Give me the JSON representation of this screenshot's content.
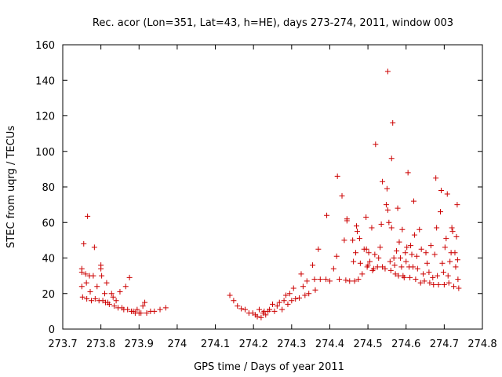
{
  "chart_data": {
    "type": "scatter",
    "title": "Rec. acor (Lon=351, Lat=43, h=HE), days 273-274, 2011, window 003",
    "xlabel": "GPS time / Days of year 2011",
    "ylabel": "STEC from uqrg / TECUs",
    "xlim": [
      273.7,
      274.8
    ],
    "ylim": [
      0,
      160
    ],
    "xticks": [
      273.7,
      273.8,
      273.9,
      274.0,
      274.1,
      274.2,
      274.3,
      274.4,
      274.5,
      274.6,
      274.7,
      274.8
    ],
    "xtick_labels": [
      "273.7",
      "273.8",
      "273.9",
      "274",
      "274.1",
      "274.2",
      "274.3",
      "274.4",
      "274.5",
      "274.6",
      "274.7",
      "274.8"
    ],
    "yticks": [
      0,
      20,
      40,
      60,
      80,
      100,
      120,
      140,
      160
    ],
    "ytick_labels": [
      "0",
      "20",
      "40",
      "60",
      "80",
      "100",
      "120",
      "140",
      "160"
    ],
    "grid": false,
    "legend": "none",
    "marker": "plus",
    "color": "#cc0000",
    "series": [
      {
        "points": [
          [
            273.75,
            34
          ],
          [
            273.75,
            32
          ],
          [
            273.75,
            24
          ],
          [
            273.752,
            18
          ],
          [
            273.755,
            48
          ],
          [
            273.76,
            31
          ],
          [
            273.762,
            26
          ],
          [
            273.763,
            17
          ],
          [
            273.765,
            63.5
          ],
          [
            273.77,
            30
          ],
          [
            273.772,
            21
          ],
          [
            273.775,
            16
          ],
          [
            273.78,
            30
          ],
          [
            273.783,
            46
          ],
          [
            273.785,
            17
          ],
          [
            273.79,
            24
          ],
          [
            273.795,
            16
          ],
          [
            273.8,
            36
          ],
          [
            273.8,
            34
          ],
          [
            273.802,
            30
          ],
          [
            273.805,
            16
          ],
          [
            273.81,
            20
          ],
          [
            273.812,
            15
          ],
          [
            273.815,
            26
          ],
          [
            273.818,
            15
          ],
          [
            273.822,
            14
          ],
          [
            273.828,
            20
          ],
          [
            273.832,
            18
          ],
          [
            273.835,
            13
          ],
          [
            273.84,
            16
          ],
          [
            273.845,
            12
          ],
          [
            273.85,
            21
          ],
          [
            273.855,
            12
          ],
          [
            273.86,
            11
          ],
          [
            273.865,
            24
          ],
          [
            273.87,
            11
          ],
          [
            273.875,
            29
          ],
          [
            273.88,
            10
          ],
          [
            273.885,
            10
          ],
          [
            273.89,
            9
          ],
          [
            273.895,
            11
          ],
          [
            273.9,
            9
          ],
          [
            273.905,
            9
          ],
          [
            273.91,
            13
          ],
          [
            273.915,
            15
          ],
          [
            273.92,
            9
          ],
          [
            273.93,
            10
          ],
          [
            273.94,
            10
          ],
          [
            273.955,
            11
          ],
          [
            273.97,
            12
          ],
          [
            274.138,
            19
          ],
          [
            274.148,
            16
          ],
          [
            274.158,
            13
          ],
          [
            274.168,
            11.5
          ],
          [
            274.178,
            11
          ],
          [
            274.188,
            9
          ],
          [
            274.198,
            9
          ],
          [
            274.205,
            8
          ],
          [
            274.21,
            7
          ],
          [
            274.215,
            11
          ],
          [
            274.22,
            6.5
          ],
          [
            274.225,
            9
          ],
          [
            274.228,
            10
          ],
          [
            274.232,
            8
          ],
          [
            274.238,
            10
          ],
          [
            274.242,
            11
          ],
          [
            274.25,
            14
          ],
          [
            274.255,
            10
          ],
          [
            274.262,
            13
          ],
          [
            274.268,
            15
          ],
          [
            274.275,
            11
          ],
          [
            274.28,
            16
          ],
          [
            274.285,
            19
          ],
          [
            274.29,
            14
          ],
          [
            274.295,
            20
          ],
          [
            274.3,
            16
          ],
          [
            274.305,
            23
          ],
          [
            274.31,
            17
          ],
          [
            274.32,
            17.5
          ],
          [
            274.325,
            31
          ],
          [
            274.33,
            24
          ],
          [
            274.335,
            19
          ],
          [
            274.34,
            27
          ],
          [
            274.345,
            20
          ],
          [
            274.355,
            36
          ],
          [
            274.36,
            28
          ],
          [
            274.362,
            22
          ],
          [
            274.37,
            45
          ],
          [
            274.375,
            28
          ],
          [
            274.39,
            28
          ],
          [
            274.392,
            64
          ],
          [
            274.4,
            27
          ],
          [
            274.41,
            34
          ],
          [
            274.418,
            41
          ],
          [
            274.42,
            86
          ],
          [
            274.425,
            28
          ],
          [
            274.432,
            75
          ],
          [
            274.438,
            50
          ],
          [
            274.442,
            27.5
          ],
          [
            274.445,
            61
          ],
          [
            274.445,
            62
          ],
          [
            274.452,
            27
          ],
          [
            274.46,
            50
          ],
          [
            274.462,
            38
          ],
          [
            274.465,
            27
          ],
          [
            274.468,
            43
          ],
          [
            274.47,
            58
          ],
          [
            274.472,
            55
          ],
          [
            274.475,
            28
          ],
          [
            274.478,
            51
          ],
          [
            274.48,
            37
          ],
          [
            274.485,
            31
          ],
          [
            274.49,
            45
          ],
          [
            274.495,
            63
          ],
          [
            274.496,
            45
          ],
          [
            274.498,
            35
          ],
          [
            274.5,
            36
          ],
          [
            274.502,
            43
          ],
          [
            274.505,
            38
          ],
          [
            274.51,
            57
          ],
          [
            274.512,
            33
          ],
          [
            274.515,
            34
          ],
          [
            274.518,
            42
          ],
          [
            274.52,
            104
          ],
          [
            274.525,
            35
          ],
          [
            274.528,
            40
          ],
          [
            274.532,
            46
          ],
          [
            274.535,
            59
          ],
          [
            274.538,
            83
          ],
          [
            274.538,
            35
          ],
          [
            274.545,
            34
          ],
          [
            274.548,
            70
          ],
          [
            274.55,
            79
          ],
          [
            274.552,
            145
          ],
          [
            274.552,
            67
          ],
          [
            274.555,
            60
          ],
          [
            274.558,
            38
          ],
          [
            274.56,
            33
          ],
          [
            274.562,
            96
          ],
          [
            274.562,
            57
          ],
          [
            274.565,
            116
          ],
          [
            274.568,
            40
          ],
          [
            274.57,
            36
          ],
          [
            274.572,
            31
          ],
          [
            274.575,
            44
          ],
          [
            274.578,
            68
          ],
          [
            274.58,
            30
          ],
          [
            274.582,
            49
          ],
          [
            274.585,
            40
          ],
          [
            274.588,
            35
          ],
          [
            274.59,
            56
          ],
          [
            274.592,
            30
          ],
          [
            274.595,
            29
          ],
          [
            274.598,
            43
          ],
          [
            274.6,
            38
          ],
          [
            274.602,
            46
          ],
          [
            274.605,
            88
          ],
          [
            274.608,
            35
          ],
          [
            274.61,
            29
          ],
          [
            274.612,
            47
          ],
          [
            274.615,
            42
          ],
          [
            274.618,
            35
          ],
          [
            274.62,
            72
          ],
          [
            274.622,
            53
          ],
          [
            274.625,
            28
          ],
          [
            274.628,
            41
          ],
          [
            274.63,
            34
          ],
          [
            274.635,
            56
          ],
          [
            274.638,
            26
          ],
          [
            274.64,
            45
          ],
          [
            274.645,
            31
          ],
          [
            274.648,
            27
          ],
          [
            274.652,
            43
          ],
          [
            274.655,
            37
          ],
          [
            274.66,
            32
          ],
          [
            274.662,
            26
          ],
          [
            274.665,
            47
          ],
          [
            274.67,
            29
          ],
          [
            274.672,
            25
          ],
          [
            274.675,
            42
          ],
          [
            274.678,
            85
          ],
          [
            274.68,
            57
          ],
          [
            274.682,
            30
          ],
          [
            274.685,
            25
          ],
          [
            274.69,
            66
          ],
          [
            274.692,
            78
          ],
          [
            274.695,
            37
          ],
          [
            274.698,
            32
          ],
          [
            274.7,
            25
          ],
          [
            274.702,
            46
          ],
          [
            274.705,
            51
          ],
          [
            274.708,
            76
          ],
          [
            274.71,
            30
          ],
          [
            274.712,
            26
          ],
          [
            274.715,
            38
          ],
          [
            274.718,
            43
          ],
          [
            274.72,
            57
          ],
          [
            274.722,
            55
          ],
          [
            274.725,
            24
          ],
          [
            274.728,
            43
          ],
          [
            274.73,
            35
          ],
          [
            274.732,
            52
          ],
          [
            274.734,
            70
          ],
          [
            274.735,
            39
          ],
          [
            274.736,
            28
          ],
          [
            274.738,
            23
          ]
        ]
      }
    ]
  }
}
